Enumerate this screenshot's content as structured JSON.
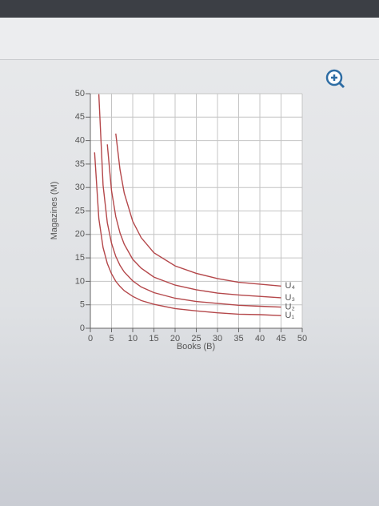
{
  "chart_data": {
    "type": "line",
    "x_label": "Books (B)",
    "y_label": "Magazines (M)",
    "x": [
      1,
      2,
      3,
      4,
      5,
      6,
      7,
      8,
      10,
      12,
      15,
      20,
      25,
      30,
      35,
      40,
      45
    ],
    "series": [
      {
        "name": "U₁",
        "color": "#b4474a",
        "values": [
          37.5,
          23.4,
          17.2,
          13.8,
          11.6,
          10.0,
          8.9,
          8.0,
          6.8,
          5.9,
          5.1,
          4.2,
          3.7,
          3.3,
          3.0,
          2.9,
          2.7
        ]
      },
      {
        "name": "U₂",
        "color": "#b4474a",
        "values": [
          null,
          49.9,
          30.5,
          22.5,
          18.1,
          15.3,
          13.4,
          12.0,
          10.1,
          8.8,
          7.6,
          6.4,
          5.7,
          5.3,
          4.9,
          4.7,
          4.5
        ]
      },
      {
        "name": "U₃",
        "color": "#b4474a",
        "values": [
          null,
          null,
          null,
          39.2,
          29.3,
          23.8,
          20.3,
          17.9,
          14.7,
          12.8,
          10.9,
          9.2,
          8.2,
          7.5,
          7.1,
          6.8,
          6.5
        ]
      },
      {
        "name": "U₄",
        "color": "#b4474a",
        "values": [
          null,
          null,
          null,
          null,
          null,
          41.5,
          33.8,
          28.8,
          22.8,
          19.3,
          16.1,
          13.3,
          11.7,
          10.6,
          9.8,
          9.4,
          9.0
        ]
      }
    ],
    "xlim": [
      0,
      50
    ],
    "xticks": [
      0,
      5,
      10,
      15,
      20,
      25,
      30,
      35,
      40,
      45,
      50
    ],
    "ylim": [
      0,
      50
    ],
    "yticks": [
      0,
      5,
      10,
      15,
      20,
      25,
      30,
      35,
      40,
      45,
      50
    ],
    "grid": true
  }
}
